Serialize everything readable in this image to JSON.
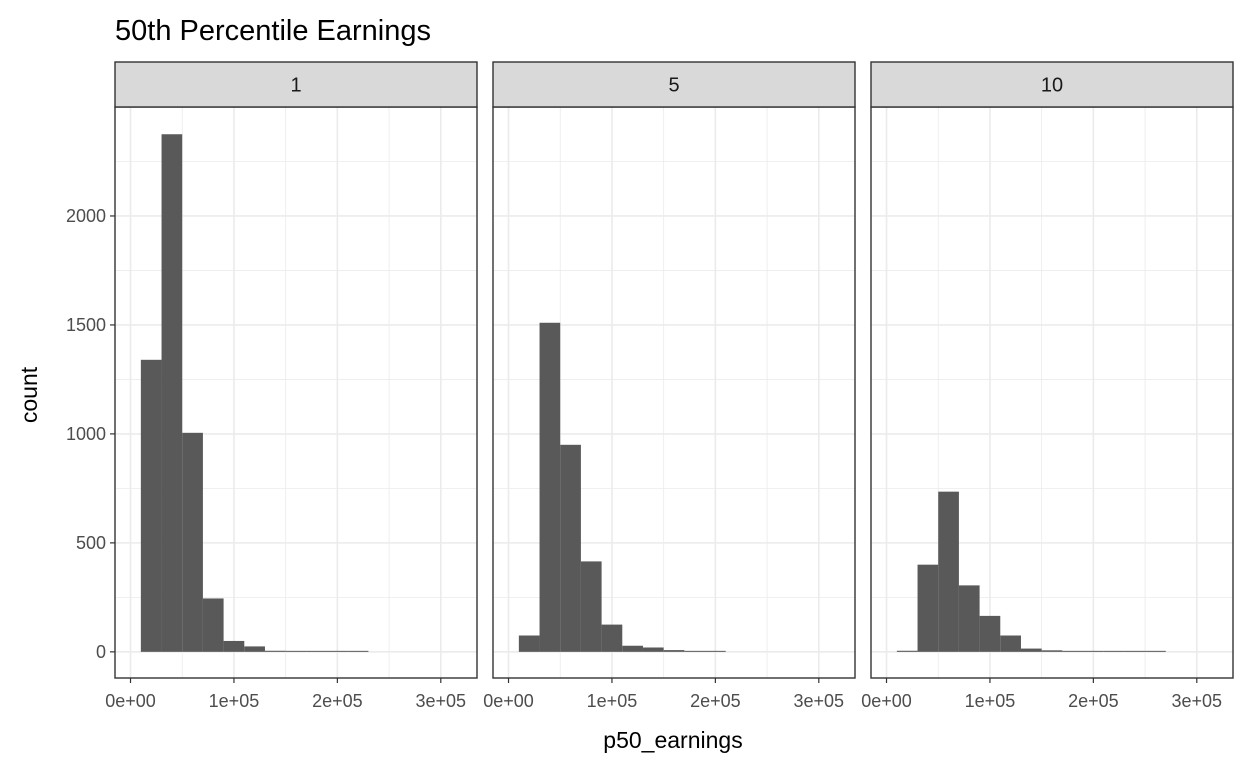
{
  "chart_data": {
    "type": "bar",
    "subtype": "histogram-facets",
    "title": "50th Percentile Earnings",
    "xlabel": "p50_earnings",
    "ylabel": "count",
    "xlim": [
      -15000,
      335000
    ],
    "ylim": [
      -120,
      2500
    ],
    "x_ticks": [
      0,
      100000,
      200000,
      300000
    ],
    "x_tick_labels": [
      "0e+00",
      "1e+05",
      "2e+05",
      "3e+05"
    ],
    "y_ticks": [
      0,
      500,
      1000,
      1500,
      2000
    ],
    "y_tick_labels": [
      "0",
      "500",
      "1000",
      "1500",
      "2000"
    ],
    "grid": true,
    "bin_width": 20000,
    "bin_start": 10000,
    "facets": [
      {
        "label": "1",
        "counts": [
          1340,
          2375,
          1005,
          245,
          50,
          25,
          5,
          3,
          1,
          1,
          1,
          0,
          0,
          0,
          0,
          0
        ]
      },
      {
        "label": "5",
        "counts": [
          75,
          1510,
          950,
          415,
          125,
          28,
          20,
          8,
          3,
          1,
          0,
          0,
          0,
          0,
          0,
          0
        ]
      },
      {
        "label": "10",
        "counts": [
          5,
          400,
          735,
          305,
          165,
          75,
          15,
          7,
          2,
          1,
          1,
          3,
          2,
          0,
          0,
          0
        ]
      }
    ]
  }
}
